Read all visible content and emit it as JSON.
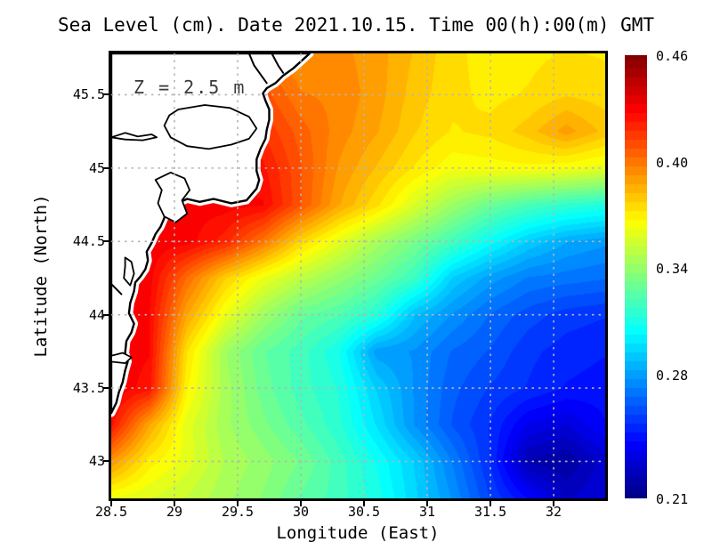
{
  "figure": {
    "title": "Sea Level (cm). Date 2021.10.15. Time 00(h):00(m) GMT",
    "background": "#ffffff",
    "text_color": "#000000"
  },
  "chart_data": {
    "type": "heatmap",
    "title": "Sea Level (cm). Date 2021.10.15. Time 00(h):00(m) GMT",
    "xlabel": "Longitude (East)",
    "ylabel": "Latitude (North)",
    "annotation": "Z = 2.5 m",
    "annotation_color": "#3a3a3a",
    "xlim": [
      28.5,
      32.408
    ],
    "ylim": [
      42.748,
      45.782
    ],
    "grid_on": true,
    "grid_color": "#b5b5b5",
    "colormap": "jet",
    "band_step": 0.005,
    "xticks": {
      "values": [
        28.5,
        29,
        29.5,
        30,
        30.5,
        31,
        31.5,
        32
      ],
      "labels": [
        "28.5",
        "29",
        "29.5",
        "30",
        "30.5",
        "31",
        "31.5",
        "32"
      ]
    },
    "yticks": {
      "values": [
        45.5,
        45,
        44.5,
        44,
        43.5,
        43
      ],
      "labels": [
        "45.5",
        "45",
        "44.5",
        "44",
        "43.5",
        "43"
      ]
    },
    "colorbar": {
      "min": 0.21,
      "max": 0.46,
      "position": "right",
      "ticks": [
        {
          "value": 0.46,
          "label": "0.46"
        },
        {
          "value": 0.4,
          "label": "0.40"
        },
        {
          "value": 0.34,
          "label": "0.34"
        },
        {
          "value": 0.28,
          "label": "0.28"
        },
        {
          "value": 0.21,
          "label": "0.21"
        }
      ]
    },
    "grid": {
      "lons": [
        28.5,
        28.8,
        29.1,
        29.4,
        29.7,
        30.0,
        30.3,
        30.6,
        30.9,
        31.2,
        31.5,
        31.8,
        32.1,
        32.4
      ],
      "lats": [
        45.78,
        45.5,
        45.25,
        45.0,
        44.75,
        44.5,
        44.25,
        44.0,
        43.75,
        43.5,
        43.25,
        43.0,
        42.75
      ],
      "values": [
        [
          0.41,
          0.41,
          0.41,
          0.408,
          0.4,
          0.392,
          0.394,
          0.39,
          0.382,
          0.374,
          0.37,
          0.371,
          0.373,
          0.372
        ],
        [
          0.415,
          0.415,
          0.415,
          0.414,
          0.41,
          0.398,
          0.396,
          0.39,
          0.38,
          0.374,
          0.371,
          0.373,
          0.377,
          0.375
        ],
        [
          0.42,
          0.42,
          0.42,
          0.419,
          0.417,
          0.405,
          0.395,
          0.388,
          0.378,
          0.372,
          0.374,
          0.38,
          0.39,
          0.381
        ],
        [
          0.428,
          0.428,
          0.428,
          0.427,
          0.424,
          0.408,
          0.392,
          0.382,
          0.372,
          0.364,
          0.365,
          0.366,
          0.364,
          0.36
        ],
        [
          0.43,
          0.43,
          0.43,
          0.43,
          0.428,
          0.408,
          0.388,
          0.374,
          0.357,
          0.342,
          0.33,
          0.322,
          0.316,
          0.312
        ],
        [
          0.432,
          0.432,
          0.43,
          0.42,
          0.4,
          0.376,
          0.36,
          0.345,
          0.333,
          0.32,
          0.305,
          0.292,
          0.283,
          0.279
        ],
        [
          0.432,
          0.43,
          0.402,
          0.378,
          0.362,
          0.35,
          0.34,
          0.33,
          0.318,
          0.292,
          0.28,
          0.272,
          0.27,
          0.268
        ],
        [
          0.43,
          0.428,
          0.388,
          0.362,
          0.343,
          0.329,
          0.323,
          0.313,
          0.288,
          0.277,
          0.267,
          0.26,
          0.255,
          0.253
        ],
        [
          0.431,
          0.428,
          0.373,
          0.343,
          0.328,
          0.32,
          0.308,
          0.28,
          0.277,
          0.267,
          0.262,
          0.254,
          0.25,
          0.248
        ],
        [
          0.432,
          0.425,
          0.368,
          0.345,
          0.33,
          0.32,
          0.312,
          0.292,
          0.277,
          0.264,
          0.257,
          0.252,
          0.247,
          0.245
        ],
        [
          0.425,
          0.388,
          0.36,
          0.344,
          0.334,
          0.324,
          0.314,
          0.297,
          0.277,
          0.262,
          0.252,
          0.237,
          0.232,
          0.242
        ],
        [
          0.392,
          0.37,
          0.36,
          0.347,
          0.34,
          0.332,
          0.32,
          0.307,
          0.292,
          0.272,
          0.252,
          0.222,
          0.218,
          0.23
        ],
        [
          0.362,
          0.358,
          0.352,
          0.344,
          0.337,
          0.327,
          0.32,
          0.31,
          0.294,
          0.277,
          0.257,
          0.242,
          0.227,
          0.232
        ]
      ]
    },
    "land": {
      "fill": "#ffffff",
      "coast_color": "#000000",
      "coastline": [
        [
          30.07,
          45.782
        ],
        [
          29.94,
          45.68
        ],
        [
          29.86,
          45.63
        ],
        [
          29.8,
          45.58
        ],
        [
          29.73,
          45.545
        ],
        [
          29.7,
          45.51
        ],
        [
          29.72,
          45.46
        ],
        [
          29.75,
          45.4
        ],
        [
          29.75,
          45.33
        ],
        [
          29.73,
          45.26
        ],
        [
          29.72,
          45.2
        ],
        [
          29.68,
          45.13
        ],
        [
          29.65,
          45.06
        ],
        [
          29.65,
          44.98
        ],
        [
          29.67,
          44.92
        ],
        [
          29.65,
          44.86
        ],
        [
          29.59,
          44.8
        ],
        [
          29.57,
          44.78
        ],
        [
          29.45,
          44.76
        ],
        [
          29.31,
          44.79
        ],
        [
          29.2,
          44.77
        ],
        [
          29.1,
          44.79
        ],
        [
          29.0,
          44.75
        ],
        [
          28.94,
          44.72
        ],
        [
          28.92,
          44.66
        ],
        [
          28.89,
          44.6
        ],
        [
          28.85,
          44.55
        ],
        [
          28.82,
          44.49
        ],
        [
          28.78,
          44.43
        ],
        [
          28.79,
          44.37
        ],
        [
          28.77,
          44.31
        ],
        [
          28.73,
          44.26
        ],
        [
          28.69,
          44.22
        ],
        [
          28.68,
          44.16
        ],
        [
          28.65,
          44.08
        ],
        [
          28.64,
          44.01
        ],
        [
          28.68,
          43.94
        ],
        [
          28.66,
          43.88
        ],
        [
          28.62,
          43.82
        ],
        [
          28.61,
          43.74
        ],
        [
          28.63,
          43.68
        ],
        [
          28.61,
          43.62
        ],
        [
          28.59,
          43.54
        ],
        [
          28.56,
          43.47
        ],
        [
          28.54,
          43.4
        ],
        [
          28.5,
          43.33
        ]
      ],
      "lakes": [
        [
          [
            29.03,
            45.4
          ],
          [
            29.24,
            45.43
          ],
          [
            29.44,
            45.41
          ],
          [
            29.59,
            45.35
          ],
          [
            29.65,
            45.27
          ],
          [
            29.59,
            45.2
          ],
          [
            29.45,
            45.16
          ],
          [
            29.27,
            45.13
          ],
          [
            29.1,
            45.15
          ],
          [
            28.97,
            45.21
          ],
          [
            28.92,
            45.29
          ],
          [
            28.96,
            45.36
          ]
        ],
        [
          [
            28.97,
            44.97
          ],
          [
            29.08,
            44.93
          ],
          [
            29.12,
            44.85
          ],
          [
            29.06,
            44.78
          ],
          [
            29.1,
            44.69
          ],
          [
            29.01,
            44.63
          ],
          [
            28.92,
            44.67
          ],
          [
            28.87,
            44.76
          ],
          [
            28.9,
            44.85
          ],
          [
            28.85,
            44.92
          ]
        ],
        [
          [
            28.5,
            45.21
          ],
          [
            28.61,
            45.24
          ],
          [
            28.71,
            45.215
          ],
          [
            28.82,
            45.23
          ],
          [
            28.86,
            45.21
          ],
          [
            28.75,
            45.19
          ],
          [
            28.61,
            45.195
          ]
        ],
        [
          [
            28.5,
            43.72
          ],
          [
            28.59,
            43.74
          ],
          [
            28.66,
            43.71
          ],
          [
            28.61,
            43.67
          ],
          [
            28.5,
            43.68
          ]
        ],
        [
          [
            28.61,
            44.39
          ],
          [
            28.66,
            44.36
          ],
          [
            28.68,
            44.28
          ],
          [
            28.65,
            44.2
          ],
          [
            28.6,
            44.25
          ],
          [
            28.61,
            44.33
          ]
        ]
      ],
      "rivers": [
        [
          [
            29.59,
            45.782
          ],
          [
            29.63,
            45.7
          ],
          [
            29.68,
            45.64
          ],
          [
            29.73,
            45.58
          ]
        ],
        [
          [
            29.77,
            45.782
          ],
          [
            29.82,
            45.7
          ],
          [
            29.86,
            45.65
          ]
        ],
        [
          [
            28.5,
            44.21
          ],
          [
            28.58,
            44.14
          ]
        ]
      ]
    }
  }
}
